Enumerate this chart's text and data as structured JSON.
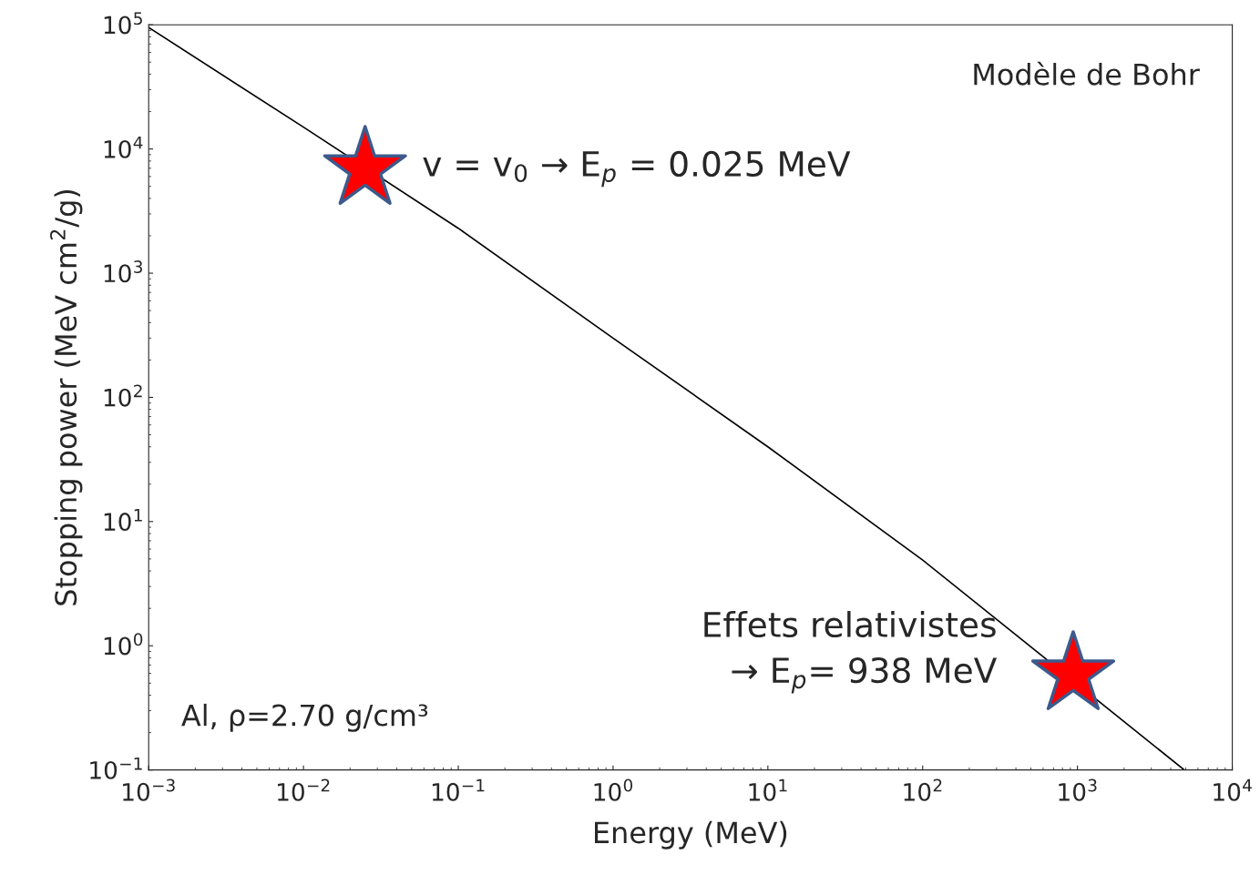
{
  "chart_data": {
    "type": "line",
    "xlabel": "Energy (MeV)",
    "ylabel": "Stopping power (MeV cm$^{2}$/g)",
    "log": "xy",
    "grid": false,
    "legend": false,
    "xlim": [
      0.001,
      10000
    ],
    "ylim": [
      0.1,
      100000
    ],
    "xticks": [
      {
        "value": 0.001,
        "label": "10$^{−3}$"
      },
      {
        "value": 0.01,
        "label": "10$^{−2}$"
      },
      {
        "value": 0.1,
        "label": "10$^{−1}$"
      },
      {
        "value": 1,
        "label": "10$^{0}$"
      },
      {
        "value": 10,
        "label": "10$^{1}$"
      },
      {
        "value": 100,
        "label": "10$^{2}$"
      },
      {
        "value": 1000,
        "label": "10$^{3}$"
      },
      {
        "value": 10000,
        "label": "10$^{4}$"
      }
    ],
    "yticks": [
      {
        "value": 0.1,
        "label": "10$^{−1}$"
      },
      {
        "value": 1,
        "label": "10$^{0}$"
      },
      {
        "value": 10,
        "label": "10$^{1}$"
      },
      {
        "value": 100,
        "label": "10$^{2}$"
      },
      {
        "value": 1000,
        "label": "10$^{3}$"
      },
      {
        "value": 10000,
        "label": "10$^{4}$"
      },
      {
        "value": 100000,
        "label": "10$^{5}$"
      }
    ],
    "series": [
      {
        "color": "#000000",
        "marker": "none",
        "line_style": "solid",
        "x": [
          0.001,
          0.01,
          0.1,
          1,
          10,
          100,
          4900
        ],
        "values": [
          95000,
          15000,
          2300,
          300,
          40,
          4.9,
          0.1
        ]
      },
      {
        "type": "scatter",
        "color": "#ff0000",
        "marker": "star",
        "x": [
          0.025,
          938
        ],
        "values": [
          6900,
          0.59
        ]
      }
    ],
    "annotations": [
      {
        "text": "v = v$_{0}$ → E$_{p}$ = 0.025 MeV",
        "x": 0.025,
        "y": 6900
      },
      {
        "text": "Effets relativistes\n→ E$_{p}$= 938 MeV",
        "x": 938,
        "y": 0.59
      },
      "Modèle de Bohr",
      "Al, ρ=2.70 g/cm³"
    ]
  }
}
